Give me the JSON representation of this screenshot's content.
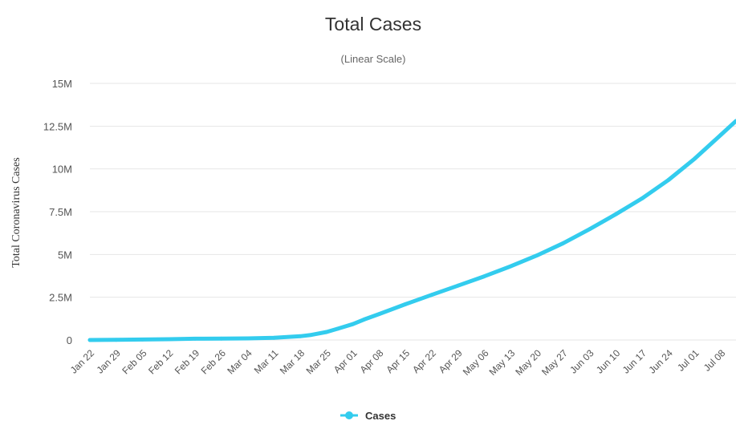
{
  "chart_data": {
    "type": "line",
    "title": "Total Cases",
    "subtitle": "(Linear Scale)",
    "xlabel": "",
    "ylabel": "Total Coronavirus Cases",
    "ylim": [
      0,
      15000000
    ],
    "yticks": [
      {
        "value": 0,
        "label": "0"
      },
      {
        "value": 2500000,
        "label": "2.5M"
      },
      {
        "value": 5000000,
        "label": "5M"
      },
      {
        "value": 7500000,
        "label": "7.5M"
      },
      {
        "value": 10000000,
        "label": "10M"
      },
      {
        "value": 12500000,
        "label": "12.5M"
      },
      {
        "value": 15000000,
        "label": "15M"
      }
    ],
    "x_start": "2020-01-22",
    "x_end": "2020-07-12",
    "x_tick_labels": [
      "Jan 22",
      "Jan 29",
      "Feb 05",
      "Feb 12",
      "Feb 19",
      "Feb 26",
      "Mar 04",
      "Mar 11",
      "Mar 18",
      "Mar 25",
      "Apr 01",
      "Apr 08",
      "Apr 15",
      "Apr 22",
      "Apr 29",
      "May 06",
      "May 13",
      "May 20",
      "May 27",
      "Jun 03",
      "Jun 10",
      "Jun 17",
      "Jun 24",
      "Jul 01",
      "Jul 08"
    ],
    "grid": true,
    "legend_position": "bottom-center",
    "colors": {
      "line": "#33ccee",
      "grid": "#e6e6e6"
    },
    "series": [
      {
        "name": "Cases",
        "x": [
          "2020-01-22",
          "2020-01-29",
          "2020-02-05",
          "2020-02-12",
          "2020-02-19",
          "2020-02-26",
          "2020-03-04",
          "2020-03-11",
          "2020-03-18",
          "2020-03-21",
          "2020-03-25",
          "2020-03-28",
          "2020-04-01",
          "2020-04-04",
          "2020-04-08",
          "2020-04-15",
          "2020-04-22",
          "2020-04-29",
          "2020-05-06",
          "2020-05-13",
          "2020-05-20",
          "2020-05-27",
          "2020-06-03",
          "2020-06-10",
          "2020-06-17",
          "2020-06-24",
          "2020-07-01",
          "2020-07-08",
          "2020-07-12"
        ],
        "values": [
          600,
          8000,
          28000,
          45000,
          75000,
          82000,
          95000,
          125000,
          220000,
          300000,
          470000,
          660000,
          930000,
          1200000,
          1520000,
          2090000,
          2640000,
          3180000,
          3720000,
          4310000,
          4940000,
          5660000,
          6480000,
          7350000,
          8280000,
          9350000,
          10600000,
          12000000,
          12800000
        ]
      }
    ]
  }
}
